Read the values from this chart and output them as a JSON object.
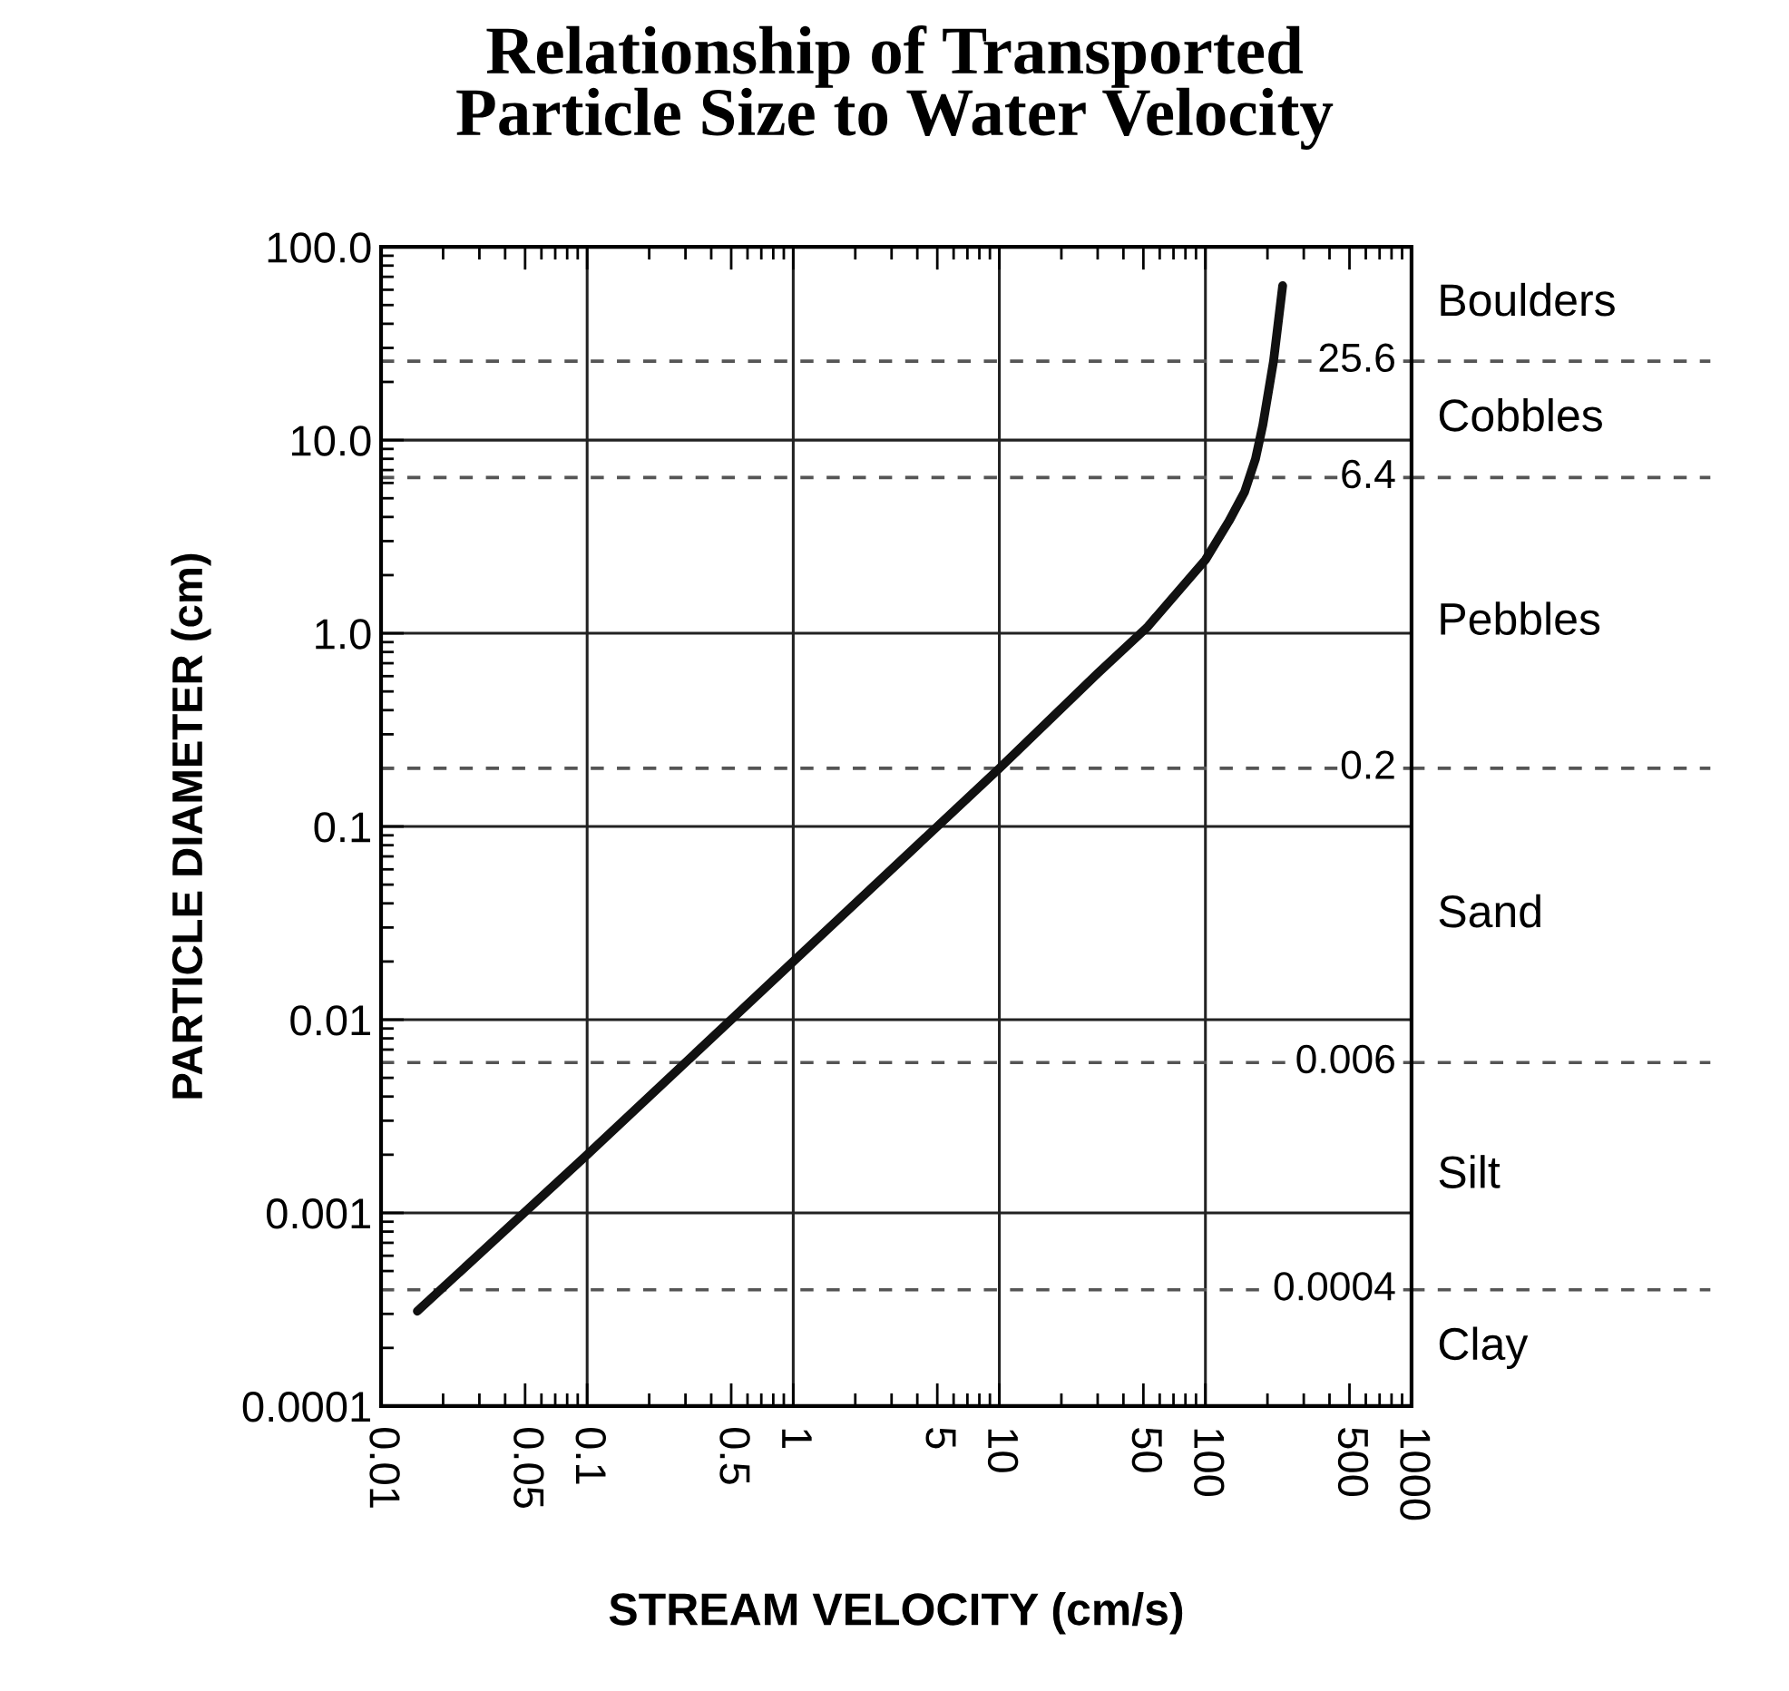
{
  "chart_data": {
    "type": "line",
    "title": "Relationship of Transported\nParticle Size to Water Velocity",
    "xlabel": "STREAM VELOCITY (cm/s)",
    "ylabel": "PARTICLE DIAMETER (cm)",
    "log": "xy",
    "series": [
      {
        "color": "#111111",
        "x": [
          0.015,
          0.1,
          1,
          10,
          30,
          52,
          100,
          130,
          155,
          175,
          190,
          214,
          237
        ],
        "values": [
          0.00031,
          0.002,
          0.02,
          0.2,
          0.62,
          1.07,
          2.4,
          3.8,
          5.4,
          8,
          12,
          25.6,
          63
        ]
      }
    ],
    "xlim": [
      0.01,
      1000
    ],
    "ylim": [
      0.0001,
      100
    ],
    "xticks": [
      0.01,
      0.05,
      0.1,
      0.5,
      1,
      5,
      10,
      50,
      100,
      500,
      1000
    ],
    "yticks": [
      {
        "value": 100,
        "label": "100.0"
      },
      {
        "value": 10,
        "label": "10.0"
      },
      {
        "value": 1,
        "label": "1.0"
      },
      0.1,
      0.01,
      0.001,
      0.0001
    ],
    "grid": true,
    "marker": "none",
    "line_style": "solid",
    "ref_lines": [
      {
        "axis": "y",
        "value": 25.6,
        "label": "25.6",
        "line_style": "dashed",
        "color": "#555555"
      },
      {
        "axis": "y",
        "value": 6.4,
        "label": "6.4",
        "line_style": "dashed",
        "color": "#555555"
      },
      {
        "axis": "y",
        "value": 0.2,
        "label": "0.2",
        "line_style": "dashed",
        "color": "#555555"
      },
      {
        "axis": "y",
        "value": 0.006,
        "label": "0.006",
        "line_style": "dashed",
        "color": "#555555"
      },
      {
        "axis": "y",
        "value": 0.0004,
        "label": "0.0004",
        "line_style": "dashed",
        "color": "#555555"
      }
    ],
    "annotations": [
      "Boulders",
      "Cobbles",
      "Pebbles",
      "Sand",
      "Silt",
      "Clay"
    ]
  }
}
